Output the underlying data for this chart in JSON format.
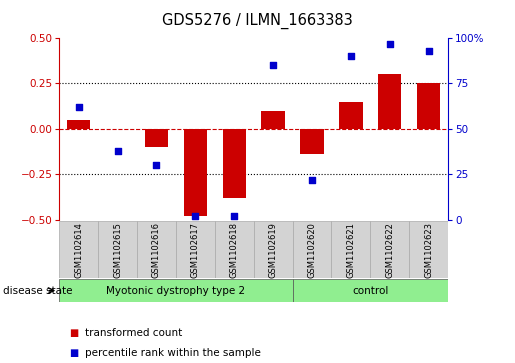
{
  "title": "GDS5276 / ILMN_1663383",
  "samples": [
    "GSM1102614",
    "GSM1102615",
    "GSM1102616",
    "GSM1102617",
    "GSM1102618",
    "GSM1102619",
    "GSM1102620",
    "GSM1102621",
    "GSM1102622",
    "GSM1102623"
  ],
  "transformed_count": [
    0.05,
    0.0,
    -0.1,
    -0.48,
    -0.38,
    0.1,
    -0.14,
    0.15,
    0.3,
    0.25
  ],
  "percentile_rank": [
    62,
    38,
    30,
    2,
    2,
    85,
    22,
    90,
    97,
    93
  ],
  "bar_color": "#cc0000",
  "dot_color": "#0000cc",
  "ylim_left": [
    -0.5,
    0.5
  ],
  "ylim_right": [
    0,
    100
  ],
  "yticks_left": [
    -0.5,
    -0.25,
    0.0,
    0.25,
    0.5
  ],
  "yticks_right": [
    0,
    25,
    50,
    75,
    100
  ],
  "ytick_labels_right": [
    "0",
    "25",
    "50",
    "75",
    "100%"
  ],
  "hline_y": 0.0,
  "dotted_hlines": [
    0.25,
    -0.25
  ],
  "groups": [
    {
      "label": "Myotonic dystrophy type 2",
      "start": 0,
      "end": 5,
      "color": "#90ee90"
    },
    {
      "label": "control",
      "start": 6,
      "end": 9,
      "color": "#90ee90"
    }
  ],
  "disease_state_label": "disease state",
  "legend_items": [
    {
      "color": "#cc0000",
      "label": "transformed count",
      "marker": "s"
    },
    {
      "color": "#0000cc",
      "label": "percentile rank within the sample",
      "marker": "s"
    }
  ],
  "sample_box_color": "#d3d3d3",
  "sample_box_edge": "#aaaaaa"
}
